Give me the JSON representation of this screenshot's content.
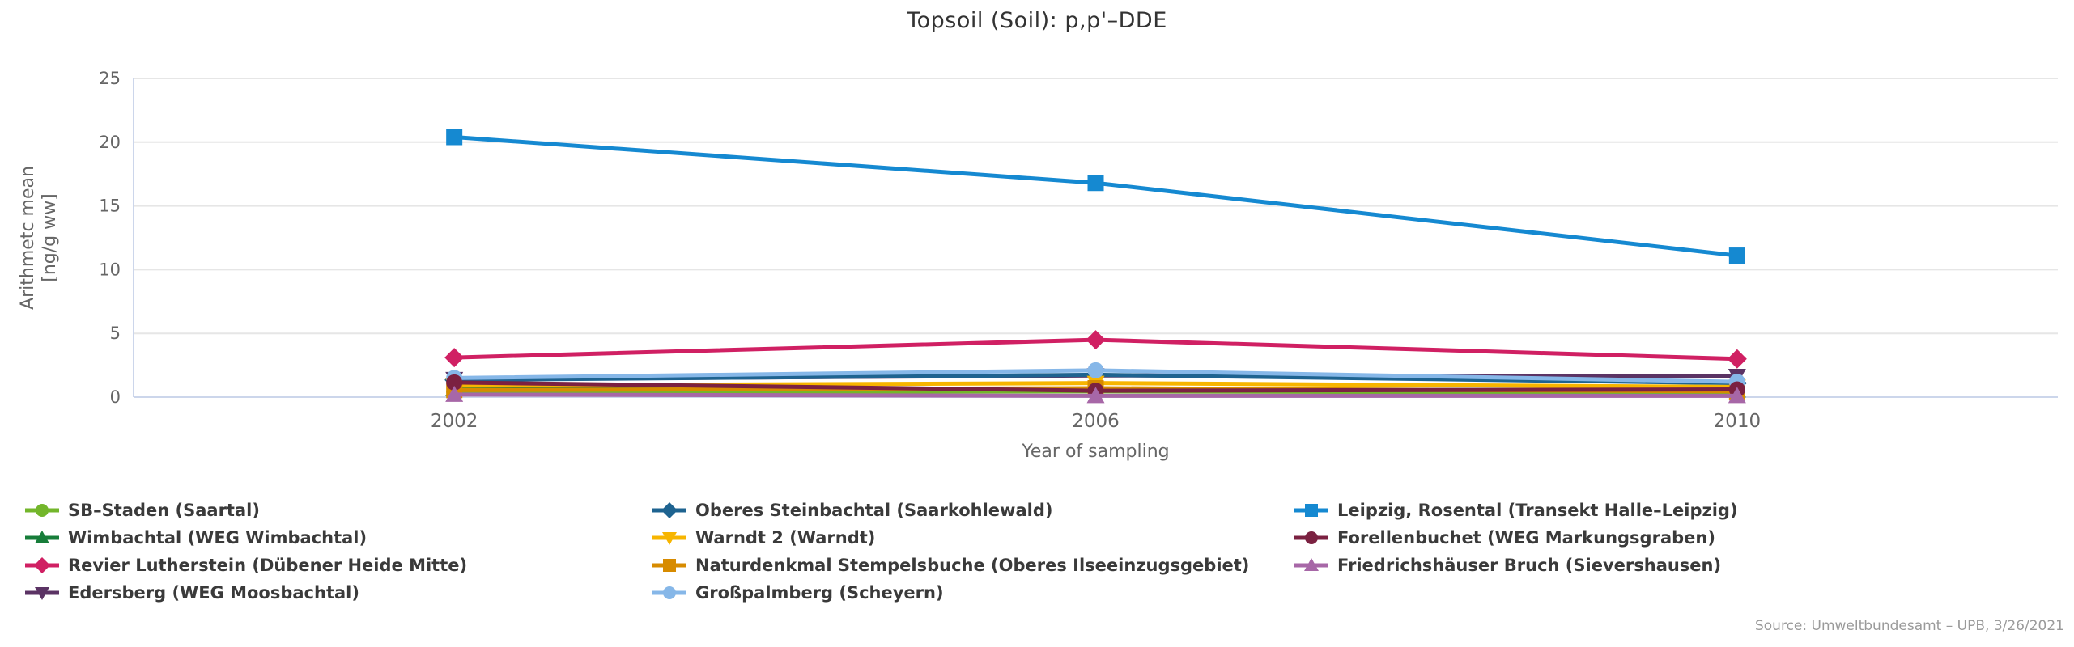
{
  "page": {
    "source_note": "Source: Umweltbundesamt – UPB, 3/26/2021"
  },
  "chart_data": {
    "type": "line",
    "title": "Topsoil (Soil): p,p'–DDE",
    "xlabel": "Year of sampling",
    "ylabel": "Arithmetc mean [ng/g ww]",
    "ylabel_lines": [
      "Arithmetc mean",
      "[ng/g ww]"
    ],
    "x": [
      "2002",
      "2006",
      "2010"
    ],
    "ylim": [
      0,
      25
    ],
    "ytick_step": 5,
    "grid": true,
    "legend_position": "bottom",
    "axis_color": "#ccd6eb",
    "grid_color": "#e6e6e6",
    "tick_label_color": "#666666",
    "series": [
      {
        "name": "SB–Staden (Saartal)",
        "marker": "circle",
        "color": "#73b62b",
        "values": [
          0.4,
          0.45,
          0.35
        ]
      },
      {
        "name": "Wimbachtal (WEG Wimbachtal)",
        "marker": "triangle",
        "color": "#177d3a",
        "values": [
          0.65,
          0.6,
          0.55
        ]
      },
      {
        "name": "Revier Lutherstein (Dübener Heide Mitte)",
        "marker": "diamond",
        "color": "#d02063",
        "values": [
          3.1,
          4.5,
          3.0
        ]
      },
      {
        "name": "Edersberg (WEG Moosbachtal)",
        "marker": "triangle-down",
        "color": "#5b3364",
        "values": [
          1.4,
          1.7,
          1.65
        ]
      },
      {
        "name": "Oberes Steinbachtal (Saarkohlewald)",
        "marker": "diamond",
        "color": "#1e6390",
        "values": [
          1.35,
          1.75,
          1.1
        ]
      },
      {
        "name": "Warndt 2 (Warndt)",
        "marker": "triangle-down",
        "color": "#f7b500",
        "values": [
          0.9,
          1.1,
          0.8
        ]
      },
      {
        "name": "Naturdenkmal Stempelsbuche (Oberes Ilseeinzugsgebiet)",
        "marker": "square",
        "color": "#d78b00",
        "values": [
          0.55,
          0.7,
          0.45
        ]
      },
      {
        "name": "Großpalmberg (Scheyern)",
        "marker": "circle",
        "color": "#86b7e8",
        "values": [
          1.5,
          2.1,
          1.2
        ]
      },
      {
        "name": "Leipzig, Rosental (Transekt Halle–Leipzig)",
        "marker": "square",
        "color": "#1589d1",
        "values": [
          20.4,
          16.8,
          11.1
        ]
      },
      {
        "name": "Forellenbuchet (WEG Markungsgraben)",
        "marker": "circle",
        "color": "#7b2141",
        "values": [
          1.15,
          0.5,
          0.6
        ]
      },
      {
        "name": "Friedrichshäuser Bruch (Sievershausen)",
        "marker": "triangle",
        "color": "#a767a7",
        "values": [
          0.2,
          0.1,
          0.1
        ]
      }
    ]
  }
}
